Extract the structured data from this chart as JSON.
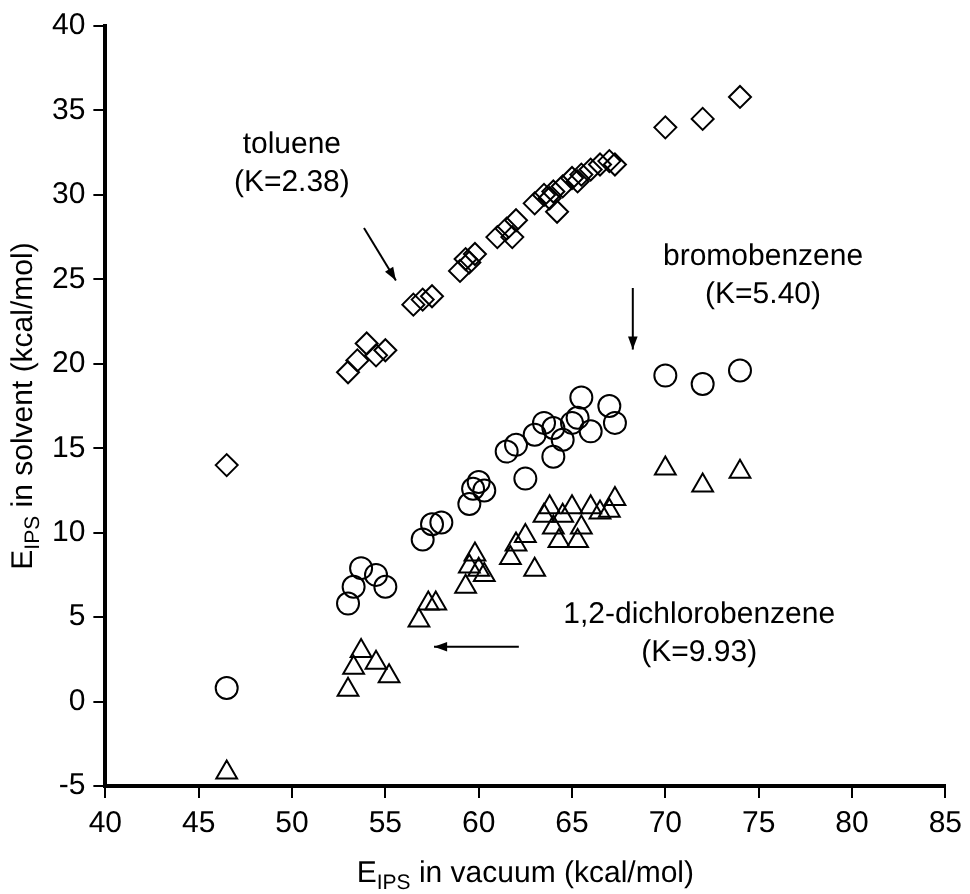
{
  "chart_data": {
    "type": "scatter",
    "xlabel": "E$_{IPS}$ in vacuum (kcal/mol)",
    "ylabel": "E$_{IPS}$ in solvent (kcal/mol)",
    "xlim": [
      40,
      85
    ],
    "xticks": [
      40,
      45,
      50,
      55,
      60,
      65,
      70,
      75,
      80,
      85
    ],
    "ylim": [
      -5,
      40
    ],
    "yticks": [
      -5,
      0,
      5,
      10,
      15,
      20,
      25,
      30,
      35,
      40
    ],
    "grid": false,
    "legend": false,
    "series": [
      {
        "color": "#000000",
        "marker": "diamond",
        "x": [
          46.5,
          53,
          53.5,
          54,
          54.5,
          55,
          56.5,
          57,
          57.5,
          59,
          59.3,
          59.5,
          59.8,
          61,
          61.5,
          62,
          61.8,
          63,
          63.5,
          63.8,
          64,
          64.5,
          64.2,
          65,
          65.3,
          65.5,
          66,
          66.5,
          67,
          67.3,
          70,
          72,
          74
        ],
        "values": [
          14,
          19.5,
          20.2,
          21.2,
          20.5,
          20.8,
          23.5,
          23.8,
          24,
          25.5,
          26.2,
          26,
          26.5,
          27.5,
          28,
          28.5,
          27.5,
          29.5,
          30,
          29.8,
          30.2,
          30.5,
          29,
          31,
          30.8,
          31.2,
          31.5,
          31.8,
          32,
          31.8,
          34,
          34.5,
          35.8
        ]
      },
      {
        "color": "#000000",
        "marker": "circle",
        "x": [
          46.5,
          53,
          53.3,
          53.7,
          54.5,
          55,
          57,
          57.5,
          58,
          59.5,
          59.7,
          60,
          60.3,
          61.5,
          62,
          62.5,
          63,
          63.5,
          64,
          64,
          64.5,
          65,
          65.5,
          65.3,
          66,
          67,
          67.3,
          70,
          72,
          74
        ],
        "values": [
          0.8,
          5.8,
          6.8,
          7.9,
          7.5,
          6.8,
          9.6,
          10.5,
          10.6,
          11.7,
          12.6,
          13,
          12.5,
          14.8,
          15.2,
          13.2,
          15.8,
          16.5,
          16.2,
          14.5,
          15.5,
          16.5,
          18,
          16.8,
          16,
          17.5,
          16.5,
          19.3,
          18.8,
          19.6
        ]
      },
      {
        "color": "#000000",
        "marker": "triangle",
        "x": [
          46.5,
          53,
          53.3,
          53.7,
          54.5,
          55.2,
          56.8,
          57.3,
          57.7,
          59.3,
          59.5,
          59.8,
          60,
          60.3,
          61.7,
          62,
          62.5,
          63,
          63.5,
          63.8,
          64,
          64.3,
          64.5,
          65,
          65.3,
          65.5,
          66,
          66.5,
          67,
          67.3,
          70,
          72,
          74
        ],
        "values": [
          -4.2,
          0.7,
          2,
          3,
          2.3,
          1.5,
          4.8,
          5.8,
          5.8,
          6.8,
          8,
          8.7,
          7.8,
          7.5,
          8.5,
          9.3,
          9.8,
          7.8,
          11,
          11.5,
          10.3,
          9.5,
          11,
          11.5,
          9.5,
          10.3,
          11.5,
          11.2,
          11.3,
          12,
          13.8,
          12.8,
          13.6
        ]
      }
    ],
    "annotations": [
      "toluene\n(K=2.38)",
      "bromobenzene\n(K=5.40)",
      "1,2-dichlorobenzene\n(K=9.93)"
    ]
  }
}
